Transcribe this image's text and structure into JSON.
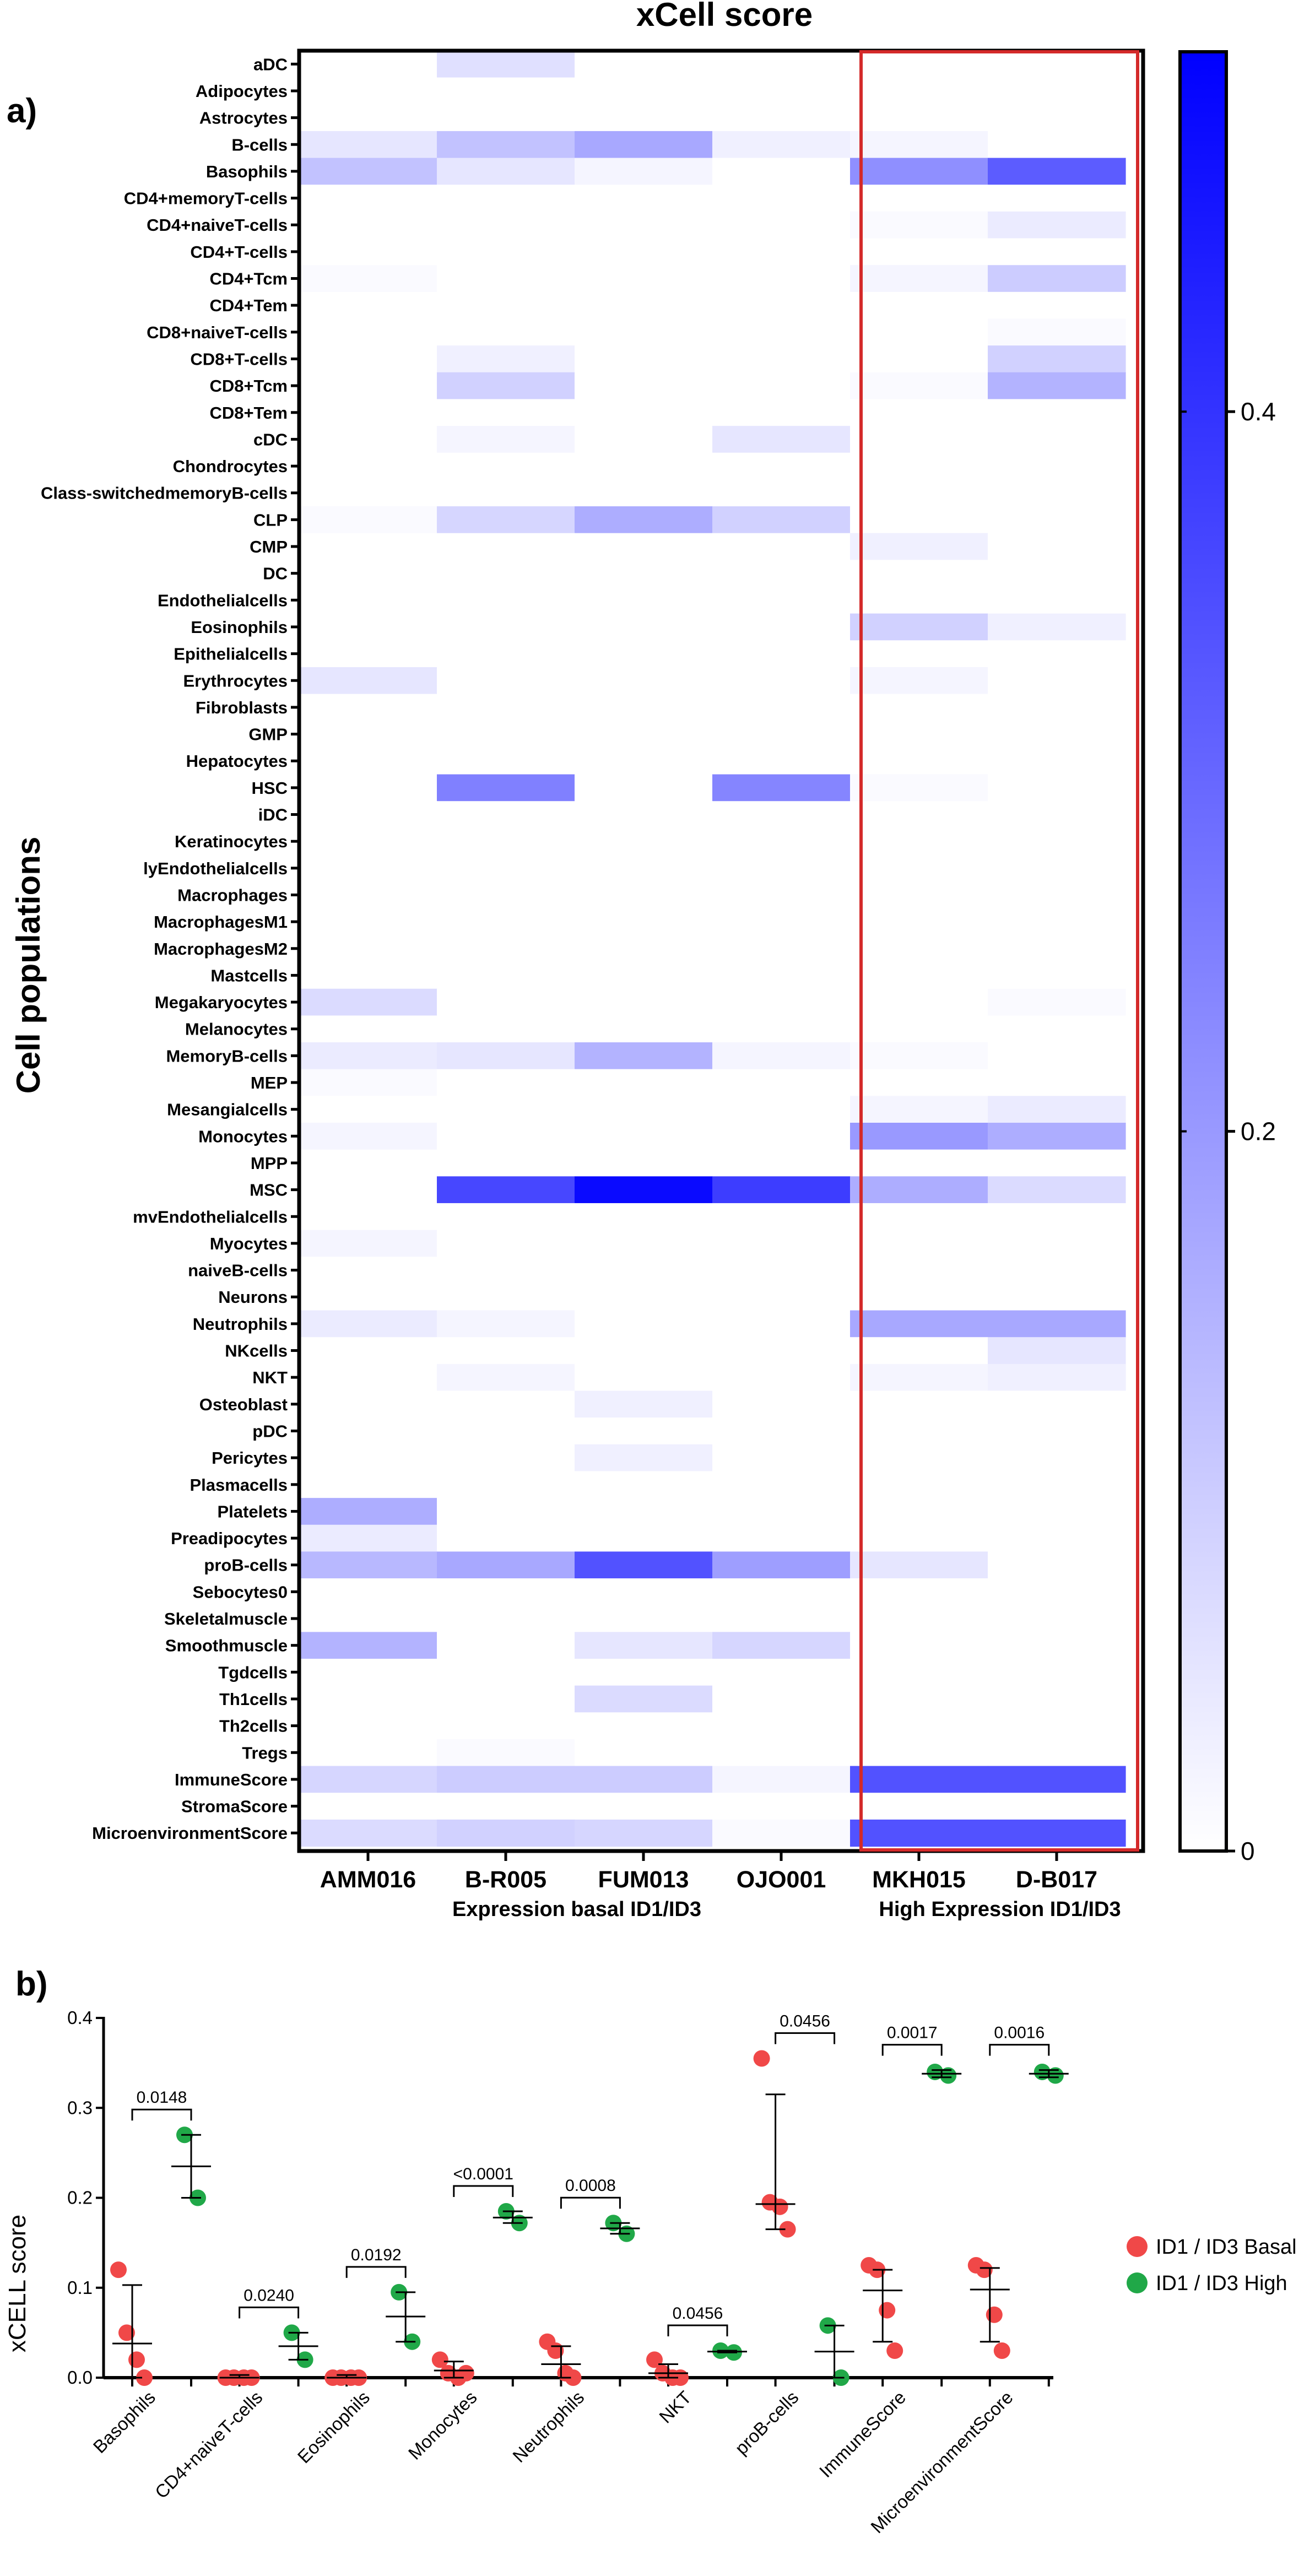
{
  "panel_a_label": "a)",
  "panel_b_label": "b)",
  "chart_data": [
    {
      "type": "heatmap",
      "title": "xCell score",
      "ylabel": "Cell populations",
      "columns": [
        "AMM016",
        "B-R005",
        "FUM013",
        "OJO001",
        "MKH015",
        "D-B017"
      ],
      "group_labels": [
        {
          "text": "Expression basal ID1/ID3",
          "color": "#1f1fd0"
        },
        {
          "text": "High Expression ID1/ID3",
          "color": "#d42a2a"
        }
      ],
      "highlight_columns": [
        "MKH015",
        "D-B017"
      ],
      "colorbar": {
        "min": 0,
        "max": 0.5,
        "ticks": [
          0,
          0.2,
          0.4
        ],
        "tick_labels": [
          "0",
          "0.2",
          "0.4"
        ],
        "low_color": "#ffffff",
        "high_color": "#0000ff"
      },
      "rows": [
        "aDC",
        "Adipocytes",
        "Astrocytes",
        "B-cells",
        "Basophils",
        "CD4+memoryT-cells",
        "CD4+naiveT-cells",
        "CD4+T-cells",
        "CD4+Tcm",
        "CD4+Tem",
        "CD8+naiveT-cells",
        "CD8+T-cells",
        "CD8+Tcm",
        "CD8+Tem",
        "cDC",
        "Chondrocytes",
        "Class-switchedmemoryB-cells",
        "CLP",
        "CMP",
        "DC",
        "Endothelialcells",
        "Eosinophils",
        "Epithelialcells",
        "Erythrocytes",
        "Fibroblasts",
        "GMP",
        "Hepatocytes",
        "HSC",
        "iDC",
        "Keratinocytes",
        "lyEndothelialcells",
        "Macrophages",
        "MacrophagesM1",
        "MacrophagesM2",
        "Mastcells",
        "Megakaryocytes",
        "Melanocytes",
        "MemoryB-cells",
        "MEP",
        "Mesangialcells",
        "Monocytes",
        "MPP",
        "MSC",
        "mvEndothelialcells",
        "Myocytes",
        "naiveB-cells",
        "Neurons",
        "Neutrophils",
        "NKcells",
        "NKT",
        "Osteoblast",
        "pDC",
        "Pericytes",
        "Plasmacells",
        "Platelets",
        "Preadipocytes",
        "proB-cells",
        "Sebocytes0",
        "Skeletalmuscle",
        "Smoothmuscle",
        "Tgdcells",
        "Th1cells",
        "Th2cells",
        "Tregs",
        "ImmuneScore",
        "StromaScore",
        "MicroenvironmentScore"
      ],
      "values": [
        [
          0,
          0.06,
          0,
          0,
          0,
          0
        ],
        [
          0,
          0,
          0,
          0,
          0,
          0
        ],
        [
          0,
          0,
          0,
          0,
          0,
          0
        ],
        [
          0.05,
          0.12,
          0.17,
          0.03,
          0.02,
          0
        ],
        [
          0.12,
          0.05,
          0.02,
          0,
          0.22,
          0.32
        ],
        [
          0,
          0,
          0,
          0,
          0,
          0
        ],
        [
          0,
          0,
          0,
          0,
          0.01,
          0.04
        ],
        [
          0,
          0,
          0,
          0,
          0,
          0
        ],
        [
          0.01,
          0,
          0,
          0,
          0.02,
          0.1
        ],
        [
          0,
          0,
          0,
          0,
          0,
          0
        ],
        [
          0,
          0,
          0,
          0,
          0,
          0.01
        ],
        [
          0,
          0.03,
          0,
          0,
          0,
          0.09
        ],
        [
          0,
          0.09,
          0,
          0,
          0.01,
          0.15
        ],
        [
          0,
          0,
          0,
          0,
          0,
          0
        ],
        [
          0,
          0.02,
          0,
          0.05,
          0,
          0
        ],
        [
          0,
          0,
          0,
          0,
          0,
          0
        ],
        [
          0,
          0,
          0,
          0,
          0,
          0
        ],
        [
          0.01,
          0.08,
          0.16,
          0.09,
          0,
          0
        ],
        [
          0,
          0,
          0,
          0,
          0.03,
          0
        ],
        [
          0,
          0,
          0,
          0,
          0,
          0
        ],
        [
          0,
          0,
          0,
          0,
          0,
          0
        ],
        [
          0,
          0,
          0,
          0,
          0.09,
          0.03
        ],
        [
          0,
          0,
          0,
          0,
          0,
          0
        ],
        [
          0.05,
          0,
          0,
          0,
          0.02,
          0
        ],
        [
          0,
          0,
          0,
          0,
          0,
          0
        ],
        [
          0,
          0,
          0,
          0,
          0,
          0
        ],
        [
          0,
          0,
          0,
          0,
          0,
          0
        ],
        [
          0,
          0.25,
          0,
          0.24,
          0.01,
          0
        ],
        [
          0,
          0,
          0,
          0,
          0,
          0
        ],
        [
          0,
          0,
          0,
          0,
          0,
          0
        ],
        [
          0,
          0,
          0,
          0,
          0,
          0
        ],
        [
          0,
          0,
          0,
          0,
          0,
          0
        ],
        [
          0,
          0,
          0,
          0,
          0,
          0
        ],
        [
          0,
          0,
          0,
          0,
          0,
          0
        ],
        [
          0,
          0,
          0,
          0,
          0,
          0
        ],
        [
          0.07,
          0,
          0,
          0,
          0,
          0.01
        ],
        [
          0,
          0,
          0,
          0,
          0,
          0
        ],
        [
          0.04,
          0.05,
          0.15,
          0.02,
          0.01,
          0
        ],
        [
          0.01,
          0,
          0,
          0,
          0,
          0
        ],
        [
          0,
          0,
          0,
          0,
          0.02,
          0.04
        ],
        [
          0.02,
          0,
          0,
          0,
          0.2,
          0.16
        ],
        [
          0,
          0,
          0,
          0,
          0,
          0
        ],
        [
          0,
          0.36,
          0.48,
          0.38,
          0.16,
          0.07
        ],
        [
          0,
          0,
          0,
          0,
          0,
          0
        ],
        [
          0.02,
          0,
          0,
          0,
          0,
          0
        ],
        [
          0,
          0,
          0,
          0,
          0,
          0
        ],
        [
          0,
          0,
          0,
          0,
          0,
          0
        ],
        [
          0.04,
          0.02,
          0,
          0,
          0.17,
          0.17
        ],
        [
          0,
          0,
          0,
          0,
          0,
          0.05
        ],
        [
          0,
          0.02,
          0,
          0,
          0.02,
          0.03
        ],
        [
          0,
          0,
          0.03,
          0,
          0,
          0
        ],
        [
          0,
          0,
          0,
          0,
          0,
          0
        ],
        [
          0,
          0,
          0.03,
          0,
          0,
          0
        ],
        [
          0,
          0,
          0,
          0,
          0,
          0
        ],
        [
          0.16,
          0,
          0,
          0,
          0,
          0
        ],
        [
          0.04,
          0,
          0,
          0,
          0,
          0
        ],
        [
          0.14,
          0.17,
          0.34,
          0.19,
          0.05,
          0
        ],
        [
          0,
          0,
          0,
          0,
          0,
          0
        ],
        [
          0,
          0,
          0,
          0,
          0,
          0
        ],
        [
          0.15,
          0,
          0.05,
          0.08,
          0,
          0
        ],
        [
          0,
          0,
          0,
          0,
          0,
          0
        ],
        [
          0,
          0,
          0.07,
          0,
          0,
          0
        ],
        [
          0,
          0,
          0,
          0,
          0,
          0
        ],
        [
          0,
          0.01,
          0,
          0,
          0,
          0
        ],
        [
          0.08,
          0.1,
          0.1,
          0.02,
          0.34,
          0.34
        ],
        [
          0,
          0,
          0,
          0,
          0,
          0
        ],
        [
          0.07,
          0.09,
          0.08,
          0.01,
          0.34,
          0.34
        ]
      ]
    },
    {
      "type": "scatter",
      "ylabel": "xCELL score",
      "ylim": [
        0,
        0.4
      ],
      "yticks": [
        0,
        0.1,
        0.2,
        0.3,
        0.4
      ],
      "ytick_labels": [
        "0.0",
        "0.1",
        "0.2",
        "0.3",
        "0.4"
      ],
      "legend_position": "right",
      "series": [
        {
          "name": "ID1 / ID3 Basal",
          "color": "#f04848"
        },
        {
          "name": "ID1 / ID3 High",
          "color": "#20a848"
        }
      ],
      "categories": [
        {
          "name": "Basophils",
          "p": "0.0148",
          "basal": {
            "points": [
              0.12,
              0.05,
              0.02,
              0.0
            ],
            "mean": 0.038,
            "upper": 0.103,
            "lower": 0.0
          },
          "high": {
            "points": [
              0.27,
              0.2
            ],
            "mean": 0.235,
            "upper": 0.27,
            "lower": 0.2
          }
        },
        {
          "name": "CD4+naiveT-cells",
          "p": "0.0240",
          "basal": {
            "points": [
              0.0,
              0.0,
              0.0,
              0.0
            ],
            "mean": 0.0,
            "upper": 0.003,
            "lower": 0.0
          },
          "high": {
            "points": [
              0.05,
              0.02
            ],
            "mean": 0.035,
            "upper": 0.05,
            "lower": 0.02
          }
        },
        {
          "name": "Eosinophils",
          "p": "0.0192",
          "basal": {
            "points": [
              0.0,
              0.0,
              0.0,
              0.0
            ],
            "mean": 0.0,
            "upper": 0.003,
            "lower": 0.0
          },
          "high": {
            "points": [
              0.095,
              0.04
            ],
            "mean": 0.068,
            "upper": 0.095,
            "lower": 0.04
          }
        },
        {
          "name": "Monocytes",
          "p": "<0.0001",
          "basal": {
            "points": [
              0.02,
              0.005,
              0.0,
              0.005
            ],
            "mean": 0.008,
            "upper": 0.018,
            "lower": 0.0
          },
          "high": {
            "points": [
              0.185,
              0.172
            ],
            "mean": 0.178,
            "upper": 0.185,
            "lower": 0.172
          }
        },
        {
          "name": "Neutrophils",
          "p": "0.0008",
          "basal": {
            "points": [
              0.04,
              0.03,
              0.005,
              0.0
            ],
            "mean": 0.015,
            "upper": 0.035,
            "lower": 0.0
          },
          "high": {
            "points": [
              0.172,
              0.16
            ],
            "mean": 0.166,
            "upper": 0.172,
            "lower": 0.16
          }
        },
        {
          "name": "NKT",
          "p": "0.0456",
          "basal": {
            "points": [
              0.02,
              0.005,
              0.0,
              0.0
            ],
            "mean": 0.005,
            "upper": 0.015,
            "lower": 0.0
          },
          "high": {
            "points": [
              0.03,
              0.028
            ],
            "mean": 0.029,
            "upper": 0.03,
            "lower": 0.028
          }
        },
        {
          "name": "proB-cells",
          "p": "0.0456",
          "basal": {
            "points": [
              0.355,
              0.195,
              0.19,
              0.165
            ],
            "mean": 0.193,
            "upper": 0.315,
            "lower": 0.165
          },
          "high": {
            "points": [
              0.058,
              0.0
            ],
            "mean": 0.029,
            "upper": 0.058,
            "lower": 0.0
          }
        },
        {
          "name": "ImmuneScore",
          "p": "0.0017",
          "basal": {
            "points": [
              0.125,
              0.12,
              0.075,
              0.03
            ],
            "mean": 0.097,
            "upper": 0.12,
            "lower": 0.04
          },
          "high": {
            "points": [
              0.34,
              0.336
            ],
            "mean": 0.338,
            "upper": 0.342,
            "lower": 0.334
          }
        },
        {
          "name": "MicroenvironmentScore",
          "p": "0.0016",
          "basal": {
            "points": [
              0.125,
              0.12,
              0.07,
              0.03
            ],
            "mean": 0.098,
            "upper": 0.122,
            "lower": 0.04
          },
          "high": {
            "points": [
              0.34,
              0.336
            ],
            "mean": 0.338,
            "upper": 0.342,
            "lower": 0.334
          }
        }
      ]
    }
  ]
}
